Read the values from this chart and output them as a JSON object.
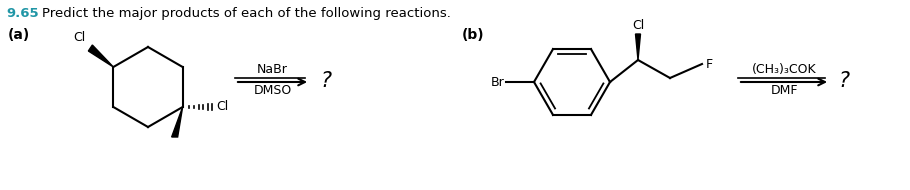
{
  "title_number": "9.65",
  "title_text": "Predict the major products of each of the following reactions.",
  "title_color": "#2196a6",
  "label_a": "(a)",
  "label_b": "(b)",
  "reagent_a_line1": "NaBr",
  "reagent_a_line2": "DMSO",
  "reagent_b_line1": "(CH₃)₃COK",
  "reagent_b_line2": "DMF",
  "question_mark": "?",
  "background": "#ffffff",
  "text_color": "#000000",
  "figsize": [
    9.1,
    1.9
  ],
  "dpi": 100
}
